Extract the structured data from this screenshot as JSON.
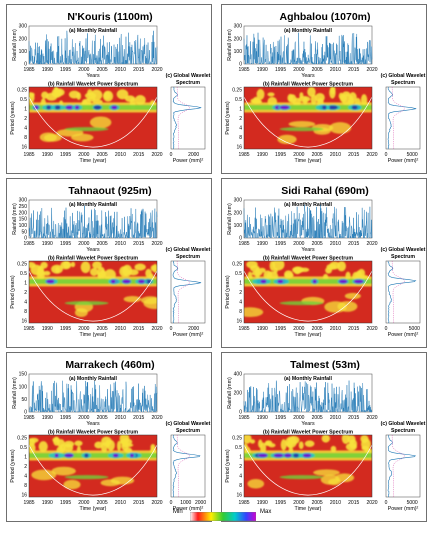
{
  "figure": {
    "panels": [
      {
        "station": "N'Kouris (1100m)",
        "seed": 11,
        "rain_ymax": 300,
        "rain_ticks": [
          0,
          100,
          200,
          300
        ],
        "gws_xticks": [
          0,
          2000
        ],
        "gws_xmax": 3000
      },
      {
        "station": "Aghbalou (1070m)",
        "seed": 23,
        "rain_ymax": 300,
        "rain_ticks": [
          0,
          100,
          200,
          300
        ],
        "gws_xticks": [
          0,
          5000
        ],
        "gws_xmax": 6500
      },
      {
        "station": "Tahnaout (925m)",
        "seed": 37,
        "rain_ymax": 300,
        "rain_ticks": [
          0,
          50,
          100,
          150,
          200,
          250,
          300
        ],
        "gws_xticks": [
          0,
          2000
        ],
        "gws_xmax": 3000
      },
      {
        "station": "Sidi Rahal (690m)",
        "seed": 41,
        "rain_ymax": 300,
        "rain_ticks": [
          0,
          100,
          200,
          300
        ],
        "gws_xticks": [
          0,
          5000
        ],
        "gws_xmax": 6000
      },
      {
        "station": "Marrakech (460m)",
        "seed": 53,
        "rain_ymax": 150,
        "rain_ticks": [
          0,
          50,
          100,
          150
        ],
        "gws_xticks": [
          0,
          1000,
          2000
        ],
        "gws_xmax": 2300
      },
      {
        "station": "Talmest (53m)",
        "seed": 67,
        "rain_ymax": 400,
        "rain_ticks": [
          0,
          200,
          400
        ],
        "gws_xticks": [
          0,
          5000
        ],
        "gws_xmax": 6500
      }
    ],
    "labels": {
      "monthly_rainfall": "(a) Monthly Rainfall",
      "power_spectrum": "(b) Rainfall Wavelet Power Spectrum",
      "global_wavelet": "(c) Global Wavelet",
      "spectrum": "Spectrum",
      "rain_ylabel": "Rainfall (mm)",
      "years": "Years",
      "time_year": "Time (year)",
      "period_label": "Period (years)",
      "power_label": "Power (mm)²"
    },
    "colorbar": {
      "min_label": "Min",
      "max_label": "Max"
    }
  },
  "chart_data": {
    "type": "wavelet-panels",
    "year_ticks": [
      "1985",
      "1990",
      "1995",
      "2000",
      "2005",
      "2010",
      "2015",
      "2020"
    ],
    "period_ticks": [
      "0.25",
      "0.5",
      "1",
      "2",
      "4",
      "8",
      "16"
    ],
    "year_range": [
      1985,
      2021
    ],
    "colors": {
      "series": "#1f77b4",
      "cone": "#ffffff",
      "heat_low": "#d32a1f",
      "heat_mid": "#f7e23a",
      "heat_band": "#6fd23a",
      "heat_high": "#6a1fd0",
      "heat_peak": "#2b3ea8"
    }
  }
}
